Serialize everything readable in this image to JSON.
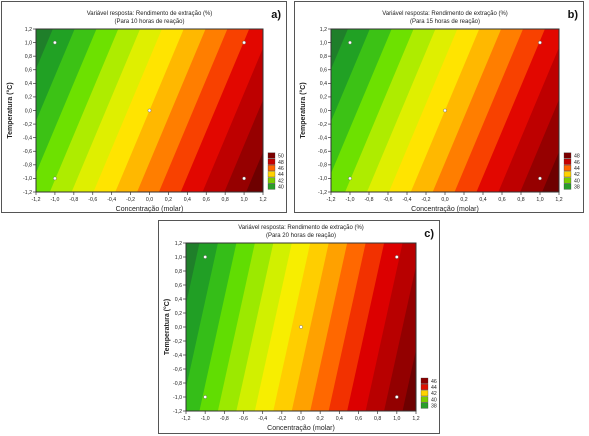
{
  "chart_data": [
    {
      "type": "heatmap",
      "panel_label": "a)",
      "title": "Variável resposta: Rendimento de extração (%)",
      "subtitle": "(Para 10 horas de reação)",
      "xlabel": "Concentração (molar)",
      "ylabel": "Temperatura (°C)",
      "xlim": [
        -1.2,
        1.2
      ],
      "ylim": [
        -1.2,
        1.2
      ],
      "x_ticks": [
        "-1,2",
        "-1,0",
        "-0,8",
        "-0,6",
        "-0,4",
        "-0,2",
        "0,0",
        "0,2",
        "0,4",
        "0,6",
        "0,8",
        "1,0",
        "1,2"
      ],
      "y_ticks": [
        "-1,2",
        "-1,0",
        "-0,8",
        "-0,6",
        "-0,4",
        "-0,2",
        "0,0",
        "0,2",
        "0,4",
        "0,6",
        "0,8",
        "1,0",
        "1,2"
      ],
      "legend": [
        "50",
        "48",
        "46",
        "44",
        "42",
        "40"
      ],
      "legend_colors": [
        "#7a0000",
        "#c60000",
        "#ff6600",
        "#ffd200",
        "#7ccd00",
        "#2a9d2a"
      ],
      "design_points": [
        {
          "x": -1.0,
          "y": 1.0
        },
        {
          "x": 1.0,
          "y": 1.0
        },
        {
          "x": 0.0,
          "y": 0.0
        },
        {
          "x": -1.0,
          "y": -1.0
        },
        {
          "x": 1.0,
          "y": -1.0
        }
      ]
    },
    {
      "type": "heatmap",
      "panel_label": "b)",
      "title": "Variável resposta: Rendimento de extração (%)",
      "subtitle": "(Para 15 horas de reação)",
      "xlabel": "Concentração (molar)",
      "ylabel": "Temperatura (°C)",
      "xlim": [
        -1.2,
        1.2
      ],
      "ylim": [
        -1.2,
        1.2
      ],
      "x_ticks": [
        "-1,2",
        "-1,0",
        "-0,8",
        "-0,6",
        "-0,4",
        "-0,2",
        "0,0",
        "0,2",
        "0,4",
        "0,6",
        "0,8",
        "1,0",
        "1,2"
      ],
      "y_ticks": [
        "-1,2",
        "-1,0",
        "-0,8",
        "-0,6",
        "-0,4",
        "-0,2",
        "0,0",
        "0,2",
        "0,4",
        "0,6",
        "0,8",
        "1,0",
        "1,2"
      ],
      "legend": [
        "48",
        "46",
        "44",
        "42",
        "40",
        "38"
      ],
      "legend_colors": [
        "#7a0000",
        "#c60000",
        "#ff6600",
        "#ffd200",
        "#7ccd00",
        "#2a9d2a"
      ],
      "design_points": [
        {
          "x": -1.0,
          "y": 1.0
        },
        {
          "x": 1.0,
          "y": 1.0
        },
        {
          "x": 0.0,
          "y": 0.0
        },
        {
          "x": -1.0,
          "y": -1.0
        },
        {
          "x": 1.0,
          "y": -1.0
        }
      ]
    },
    {
      "type": "heatmap",
      "panel_label": "c)",
      "title": "Variável resposta: Rendimento de extração (%)",
      "subtitle": "(Para 20 horas de reação)",
      "xlabel": "Concentração (molar)",
      "ylabel": "Temperatura (°C)",
      "xlim": [
        -1.2,
        1.2
      ],
      "ylim": [
        -1.2,
        1.2
      ],
      "x_ticks": [
        "-1,2",
        "-1,0",
        "-0,8",
        "-0,6",
        "-0,4",
        "-0,2",
        "0,0",
        "0,2",
        "0,4",
        "0,6",
        "0,8",
        "1,0",
        "1,2"
      ],
      "y_ticks": [
        "-1,2",
        "-1,0",
        "-0,8",
        "-0,6",
        "-0,4",
        "-0,2",
        "0,0",
        "0,2",
        "0,4",
        "0,6",
        "0,8",
        "1,0",
        "1,2"
      ],
      "legend": [
        "46",
        "44",
        "42",
        "40",
        "38"
      ],
      "legend_colors": [
        "#8a0000",
        "#dd1100",
        "#ffd200",
        "#7ccd00",
        "#2a9d2a"
      ],
      "design_points": [
        {
          "x": -1.0,
          "y": 1.0
        },
        {
          "x": 1.0,
          "y": 1.0
        },
        {
          "x": 0.0,
          "y": 0.0
        },
        {
          "x": -1.0,
          "y": -1.0
        },
        {
          "x": 1.0,
          "y": -1.0
        }
      ]
    }
  ]
}
